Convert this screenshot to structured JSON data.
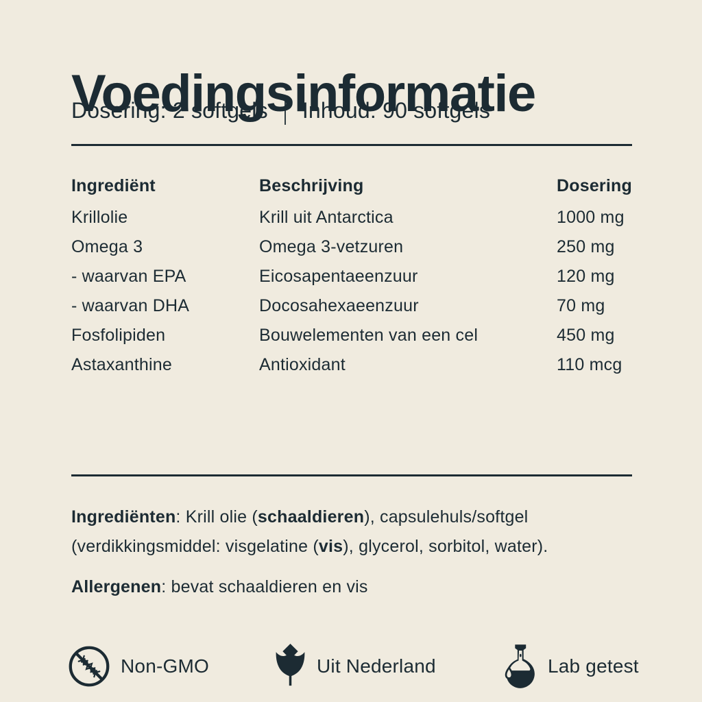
{
  "colors": {
    "background": "#F0EBDF",
    "text": "#1C2B33"
  },
  "header": {
    "title": "Voedingsinformatie",
    "dose_label": "Dosering: 2 softgels",
    "divider": "|",
    "content_label": "Inhoud: 90 softgels"
  },
  "table": {
    "headers": {
      "ingredient": "Ingrediënt",
      "description": "Beschrijving",
      "dosage": "Dosering"
    },
    "rows": [
      {
        "ingredient": "Krillolie",
        "description": "Krill uit Antarctica",
        "dosage": "1000 mg"
      },
      {
        "ingredient": "Omega 3",
        "description": "Omega 3-vetzuren",
        "dosage": "250 mg"
      },
      {
        "ingredient": "- waarvan EPA",
        "description": "Eicosapentaeenzuur",
        "dosage": "120 mg"
      },
      {
        "ingredient": "- waarvan DHA",
        "description": "Docosahexaeenzuur",
        "dosage": "70 mg"
      },
      {
        "ingredient": "Fosfolipiden",
        "description": "Bouwelementen van een cel",
        "dosage": "450 mg"
      },
      {
        "ingredient": "Astaxanthine",
        "description": "Antioxidant",
        "dosage": "110 mcg"
      }
    ]
  },
  "ingredients_paragraph": {
    "segments": [
      {
        "text": "Ingrediënten",
        "bold": true
      },
      {
        "text": ": Krill olie (",
        "bold": false
      },
      {
        "text": "schaaldieren",
        "bold": true
      },
      {
        "text": "), capsulehuls/softgel (verdikkingsmiddel: visgelatine (",
        "bold": false
      },
      {
        "text": "vis",
        "bold": true
      },
      {
        "text": "), glycerol, sorbitol, water).",
        "bold": false
      }
    ]
  },
  "allergens_paragraph": {
    "segments": [
      {
        "text": "Allergenen",
        "bold": true
      },
      {
        "text": ": bevat schaaldieren en vis",
        "bold": false
      }
    ]
  },
  "badges": [
    {
      "icon": "non-gmo-icon",
      "label": "Non-GMO"
    },
    {
      "icon": "tulip-icon",
      "label": "Uit Nederland"
    },
    {
      "icon": "lab-flask-icon",
      "label": "Lab getest"
    }
  ]
}
